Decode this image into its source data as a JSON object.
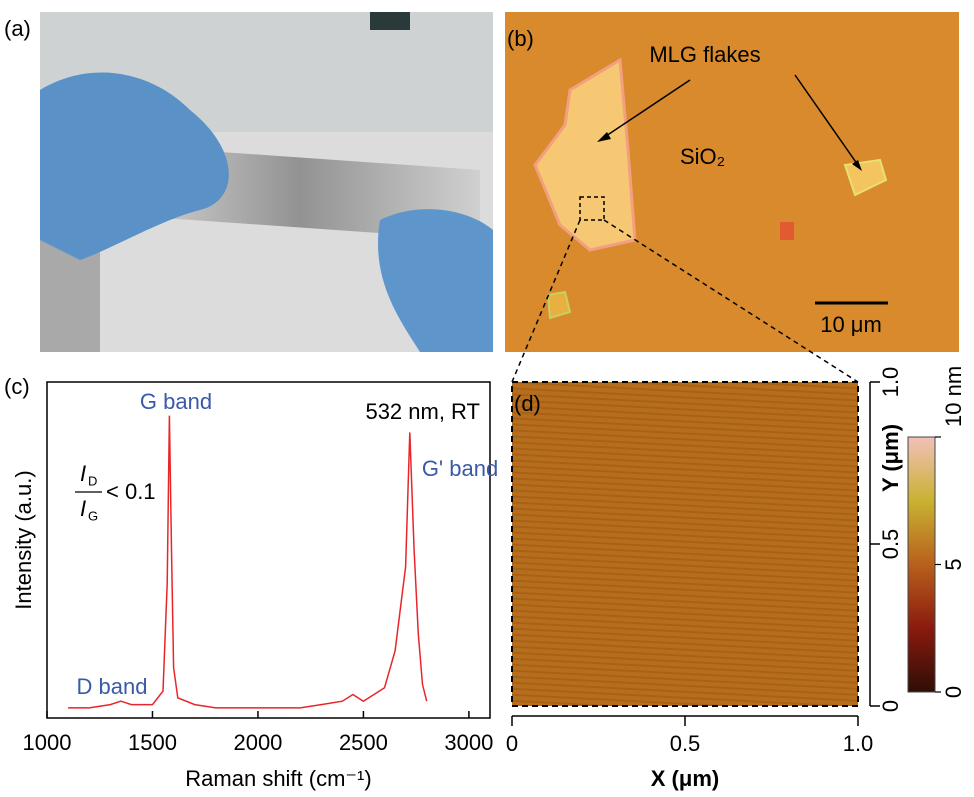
{
  "panels": {
    "a": {
      "label": "(a)"
    },
    "b": {
      "label": "(b)",
      "flakes_label": "MLG flakes",
      "substrate_label": "SiO₂",
      "scale_bar": "10 μm"
    }
  },
  "chart_data": [
    {
      "type": "line",
      "panel_label": "(c)",
      "x": [
        1100,
        1200,
        1300,
        1350,
        1400,
        1500,
        1550,
        1570,
        1580,
        1590,
        1600,
        1620,
        1700,
        1800,
        1900,
        2000,
        2100,
        2200,
        2300,
        2400,
        2450,
        2500,
        2600,
        2650,
        2680,
        2700,
        2720,
        2740,
        2760,
        2780,
        2800
      ],
      "values": [
        0.03,
        0.03,
        0.04,
        0.05,
        0.04,
        0.04,
        0.08,
        0.4,
        0.9,
        0.5,
        0.15,
        0.06,
        0.04,
        0.03,
        0.03,
        0.03,
        0.03,
        0.03,
        0.04,
        0.05,
        0.07,
        0.05,
        0.09,
        0.2,
        0.35,
        0.45,
        0.85,
        0.5,
        0.25,
        0.1,
        0.05
      ],
      "color": "#e8262a",
      "xlim": [
        1000,
        3100
      ],
      "xticks": [
        1000,
        1500,
        2000,
        2500,
        3000
      ],
      "ylim": [
        0,
        1
      ],
      "xlabel": "Raman shift (cm⁻¹)",
      "ylabel": "Intensity (a.u.)",
      "annotations": {
        "g": "G band",
        "gp": "G' band",
        "d": "D band",
        "cond": "532 nm, RT"
      },
      "ratio": {
        "num": "I",
        "num_sub": "D",
        "den": "I",
        "den_sub": "G",
        "rel": "< 0.1"
      }
    },
    {
      "type": "image",
      "panel_label": "(d)",
      "xlim": [
        0,
        1
      ],
      "xticks": [
        0,
        0.5,
        {
          "value": 1,
          "label": "1.0"
        }
      ],
      "ylim": [
        0,
        1
      ],
      "yticks": [
        0,
        0.5,
        {
          "value": 1,
          "label": "1.0"
        }
      ],
      "xlabel": "X (μm)",
      "ylabel": "Y (μm)",
      "colorbar": {
        "lim": [
          0,
          10
        ],
        "ticks": [
          0,
          5,
          {
            "value": 10,
            "label": "10 nm"
          }
        ],
        "colors": [
          "#2e0e06",
          "#8a1a0e",
          "#b8601c",
          "#c8b232",
          "#f2c0b8"
        ]
      }
    }
  ]
}
